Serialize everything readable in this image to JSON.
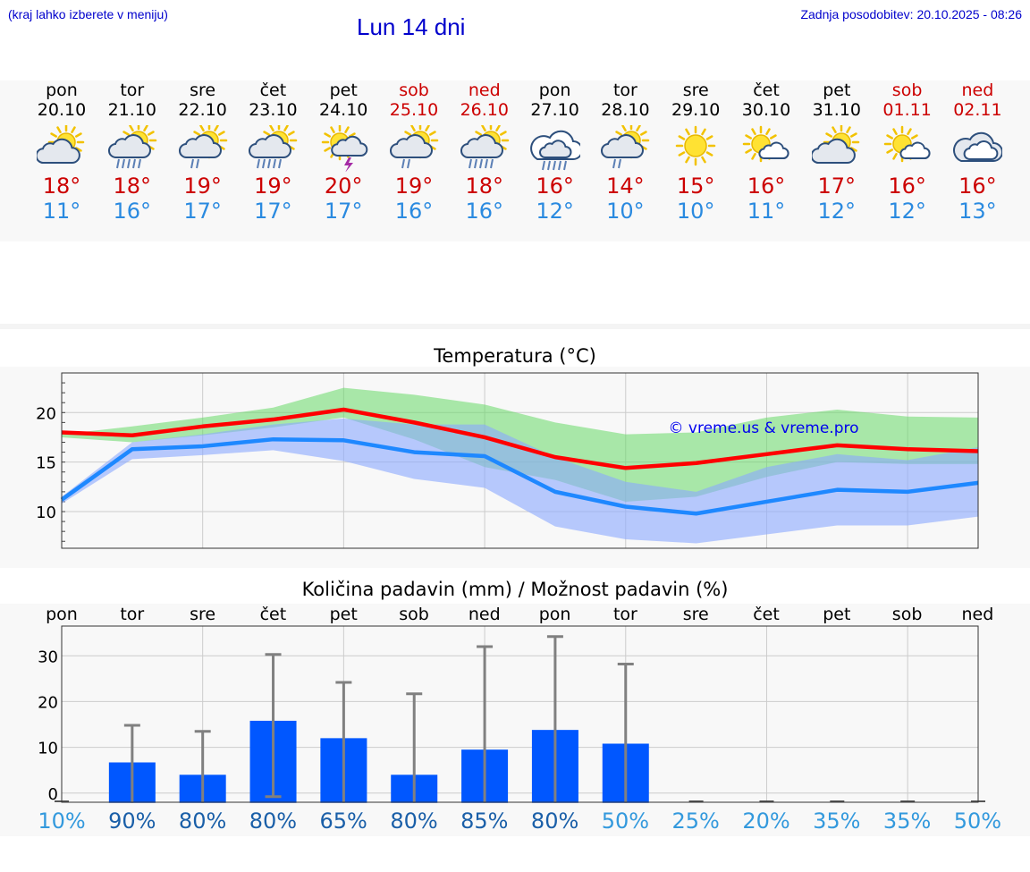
{
  "header": {
    "hint": "(kraj lahko izberete v meniju)",
    "title": "Lun 14 dni",
    "updated": "Zadnja posodobitev: 20.10.2025 - 08:26"
  },
  "days": [
    {
      "name": "pon",
      "date": "20.10",
      "weekend": false,
      "icon": "partly-cloudy-icon",
      "tmax": "18°",
      "tmin": "11°"
    },
    {
      "name": "tor",
      "date": "21.10",
      "weekend": false,
      "icon": "sun-cloud-heavy-rain-icon",
      "tmax": "18°",
      "tmin": "16°"
    },
    {
      "name": "sre",
      "date": "22.10",
      "weekend": false,
      "icon": "sun-cloud-light-rain-icon",
      "tmax": "19°",
      "tmin": "17°"
    },
    {
      "name": "čet",
      "date": "23.10",
      "weekend": false,
      "icon": "sun-cloud-heavy-rain-icon",
      "tmax": "19°",
      "tmin": "17°"
    },
    {
      "name": "pet",
      "date": "24.10",
      "weekend": false,
      "icon": "sun-thunderstorm-icon",
      "tmax": "20°",
      "tmin": "17°"
    },
    {
      "name": "sob",
      "date": "25.10",
      "weekend": true,
      "icon": "sun-cloud-light-rain-icon",
      "tmax": "19°",
      "tmin": "16°"
    },
    {
      "name": "ned",
      "date": "26.10",
      "weekend": true,
      "icon": "sun-cloud-heavy-rain-icon",
      "tmax": "18°",
      "tmin": "16°"
    },
    {
      "name": "pon",
      "date": "27.10",
      "weekend": false,
      "icon": "cloud-heavy-rain-icon",
      "tmax": "16°",
      "tmin": "12°"
    },
    {
      "name": "tor",
      "date": "28.10",
      "weekend": false,
      "icon": "sun-cloud-light-rain-icon",
      "tmax": "14°",
      "tmin": "10°"
    },
    {
      "name": "sre",
      "date": "29.10",
      "weekend": false,
      "icon": "sun-icon",
      "tmax": "15°",
      "tmin": "10°"
    },
    {
      "name": "čet",
      "date": "30.10",
      "weekend": false,
      "icon": "sun-small-cloud-icon",
      "tmax": "16°",
      "tmin": "11°"
    },
    {
      "name": "pet",
      "date": "31.10",
      "weekend": false,
      "icon": "partly-cloudy-icon",
      "tmax": "17°",
      "tmin": "12°"
    },
    {
      "name": "sob",
      "date": "01.11",
      "weekend": true,
      "icon": "sun-small-cloud-icon",
      "tmax": "16°",
      "tmin": "12°"
    },
    {
      "name": "ned",
      "date": "02.11",
      "weekend": true,
      "icon": "cloudy-icon",
      "tmax": "16°",
      "tmin": "13°"
    }
  ],
  "chart_data": [
    {
      "type": "line",
      "title": "Temperatura (°C)",
      "watermark": "© vreme.us & vreme.pro",
      "ylim": [
        6.3,
        24
      ],
      "yticks": [
        10,
        15,
        20
      ],
      "grid": true,
      "series": [
        {
          "color": "#ff0000",
          "values": [
            18.0,
            17.7,
            18.6,
            19.3,
            20.3,
            19.0,
            17.5,
            15.5,
            14.4,
            14.9,
            15.8,
            16.7,
            16.3,
            16.1
          ]
        },
        {
          "color": "#66d966",
          "range": true,
          "upper": [
            17.8,
            18.6,
            19.5,
            20.5,
            22.5,
            21.8,
            20.8,
            19.0,
            17.8,
            18.0,
            19.5,
            20.3,
            19.6,
            19.5
          ],
          "lower": [
            17.5,
            17.0,
            17.7,
            18.5,
            19.5,
            17.3,
            14.5,
            13.2,
            11.0,
            11.5,
            13.5,
            15.0,
            14.8,
            14.8
          ]
        },
        {
          "color": "#1e88ff",
          "values": [
            11.2,
            16.3,
            16.6,
            17.3,
            17.2,
            16.0,
            15.6,
            12.0,
            10.5,
            9.8,
            11.0,
            12.2,
            12.0,
            12.9
          ]
        },
        {
          "color": "#8aa8ff",
          "range": true,
          "upper": [
            11.5,
            17.0,
            17.8,
            18.8,
            19.4,
            18.8,
            18.8,
            15.5,
            13.0,
            12.0,
            14.5,
            15.8,
            15.2,
            16.5
          ],
          "lower": [
            10.8,
            15.3,
            15.7,
            16.2,
            15.1,
            13.3,
            12.4,
            8.5,
            7.2,
            6.8,
            7.7,
            8.6,
            8.6,
            9.5
          ]
        }
      ]
    },
    {
      "type": "bar",
      "title": "Količina padavin (mm) / Možnost padavin (%)",
      "ylim": [
        -2,
        36.5
      ],
      "yticks": [
        0,
        10,
        20,
        30
      ],
      "grid": true,
      "bar_color": "#0057ff",
      "error_color": "#808080",
      "values": [
        0,
        6.7,
        4.0,
        15.8,
        12.0,
        4.0,
        9.5,
        13.8,
        10.8,
        0,
        0,
        0,
        0,
        0
      ],
      "errors": [
        0,
        14.8,
        13.5,
        30.3,
        24.2,
        21.7,
        32.0,
        34.2,
        28.2,
        0,
        0,
        0,
        0,
        0
      ],
      "probability": [
        "10%",
        "90%",
        "80%",
        "80%",
        "65%",
        "80%",
        "85%",
        "80%",
        "50%",
        "25%",
        "20%",
        "35%",
        "35%",
        "50%"
      ],
      "probability_colors": [
        "#3399dd",
        "#1a5fa8",
        "#1a5fa8",
        "#1a5fa8",
        "#1a5fa8",
        "#1a5fa8",
        "#1a5fa8",
        "#1a5fa8",
        "#3399dd",
        "#3399dd",
        "#3399dd",
        "#3399dd",
        "#3399dd",
        "#3399dd"
      ]
    }
  ]
}
